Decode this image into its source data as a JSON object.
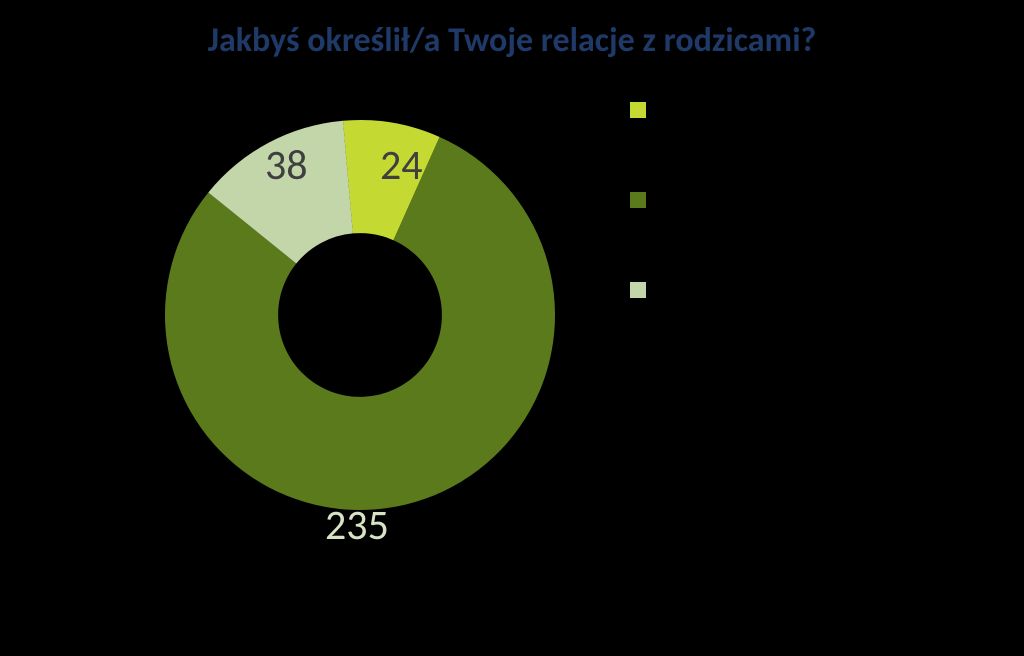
{
  "chart": {
    "type": "donut",
    "title": "Jakbyś określił/a Twoje relacje z rodzicami?",
    "title_color": "#1f3a68",
    "title_fontsize": 34,
    "background_color": "#000000",
    "label_fontsize": 42,
    "label_color_on_dark": "#d6e3c4",
    "label_color_on_light": "#3f3f3f",
    "inner_radius_ratio": 0.42,
    "outer_radius": 195,
    "start_angle_deg": -5,
    "slices": [
      {
        "label": "24",
        "value": 24,
        "color": "#c5d933",
        "label_color": "#3f3f3f"
      },
      {
        "label": "235",
        "value": 235,
        "color": "#5a7a1c",
        "label_color": "#d6e3c4"
      },
      {
        "label": "38",
        "value": 38,
        "color": "#c3d6a9",
        "label_color": "#3f3f3f"
      }
    ],
    "legend": [
      {
        "color": "#c5d933",
        "text": ""
      },
      {
        "color": "#5a7a1c",
        "text": ""
      },
      {
        "color": "#c3d6a9",
        "text": ""
      }
    ]
  }
}
